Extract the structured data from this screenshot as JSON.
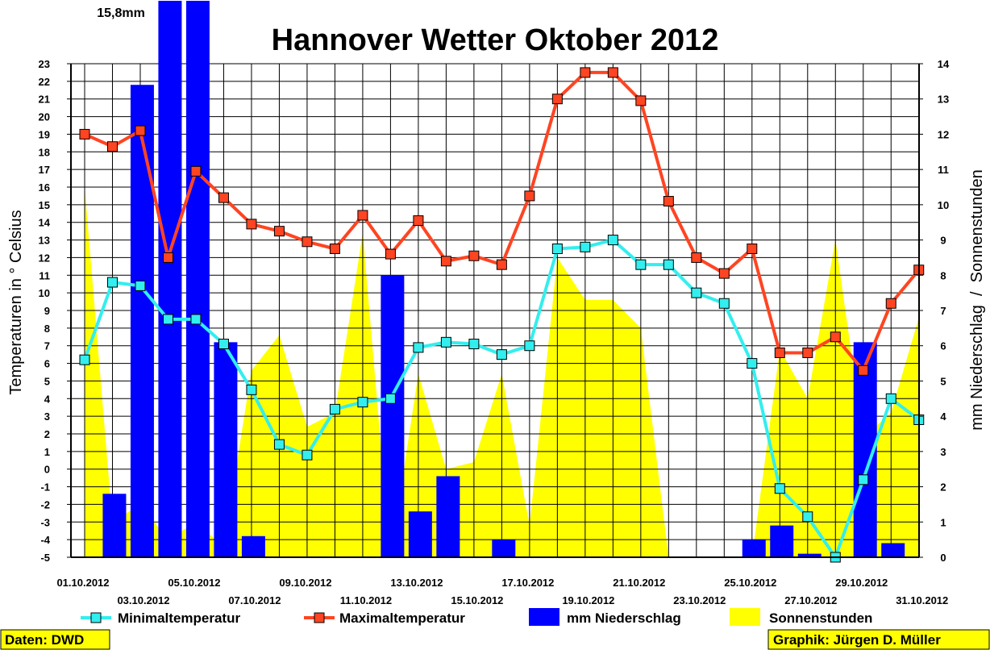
{
  "chart_data": {
    "type": "line",
    "title": "Hannover Wetter Oktober 2012",
    "ylabel_left": "Temperaturen in ° Celsius",
    "ylabel_right": "mm Niederschlag  /  Sonnenstunden",
    "ylim_left": [
      -5,
      23
    ],
    "ylim_right": [
      0,
      14
    ],
    "left_ticks": [
      -5,
      -4,
      -3,
      -2,
      -1,
      0,
      1,
      2,
      3,
      4,
      5,
      6,
      7,
      8,
      9,
      10,
      11,
      12,
      13,
      14,
      15,
      16,
      17,
      18,
      19,
      20,
      21,
      22,
      23
    ],
    "right_ticks": [
      0,
      1,
      2,
      3,
      4,
      5,
      6,
      7,
      8,
      9,
      10,
      11,
      12,
      13,
      14
    ],
    "grid": true,
    "legend_position": "bottom",
    "x": [
      "01.10.2012",
      "02.10.2012",
      "03.10.2012",
      "04.10.2012",
      "05.10.2012",
      "06.10.2012",
      "07.10.2012",
      "08.10.2012",
      "09.10.2012",
      "10.10.2012",
      "11.10.2012",
      "12.10.2012",
      "13.10.2012",
      "14.10.2012",
      "15.10.2012",
      "16.10.2012",
      "17.10.2012",
      "18.10.2012",
      "19.10.2012",
      "20.10.2012",
      "21.10.2012",
      "22.10.2012",
      "23.10.2012",
      "24.10.2012",
      "25.10.2012",
      "26.10.2012",
      "27.10.2012",
      "28.10.2012",
      "29.10.2012",
      "30.10.2012",
      "31.10.2012"
    ],
    "x_labels_row1": [
      "01.10.2012",
      "05.10.2012",
      "09.10.2012",
      "13.10.2012",
      "17.10.2012",
      "21.10.2012",
      "25.10.2012",
      "29.10.2012"
    ],
    "x_labels_row2": [
      "03.10.2012",
      "07.10.2012",
      "11.10.2012",
      "15.10.2012",
      "19.10.2012",
      "23.10.2012",
      "27.10.2012",
      "31.10.2012"
    ],
    "series": [
      {
        "name": "Minimaltemperatur",
        "axis": "left",
        "color": "#33eeee",
        "values": [
          6.2,
          10.6,
          10.4,
          8.5,
          8.5,
          7.1,
          4.5,
          1.4,
          0.8,
          3.4,
          3.8,
          4.0,
          6.9,
          7.2,
          7.1,
          6.5,
          7.0,
          12.5,
          12.6,
          13.0,
          11.6,
          11.6,
          10.0,
          9.4,
          6.0,
          -1.1,
          -2.7,
          -5.0,
          -0.6,
          4.0,
          2.8
        ]
      },
      {
        "name": "Maximaltemperatur",
        "axis": "left",
        "color": "#ff4422",
        "values": [
          19.0,
          18.3,
          19.2,
          12.0,
          16.9,
          15.4,
          13.9,
          13.5,
          12.9,
          12.5,
          14.4,
          12.2,
          14.1,
          11.8,
          12.1,
          11.6,
          15.5,
          21.0,
          22.5,
          22.5,
          20.9,
          15.2,
          12.0,
          11.1,
          12.5,
          6.6,
          6.6,
          7.5,
          5.6,
          9.4,
          11.3
        ]
      },
      {
        "name": "mm Niederschlag",
        "axis": "right",
        "color": "#0000ff",
        "values": [
          0,
          1.8,
          13.4,
          15.8,
          15.8,
          6.1,
          0.6,
          0,
          0,
          0,
          0,
          8.0,
          1.3,
          2.3,
          0,
          0.5,
          0,
          0,
          0,
          0,
          0,
          0,
          0,
          0,
          0.5,
          0.9,
          0.1,
          0,
          6.1,
          0.4,
          0
        ]
      },
      {
        "name": "Sonnenstunden",
        "axis": "right",
        "color": "#ffff00",
        "values": [
          10.5,
          1.0,
          1.5,
          0.5,
          1.0,
          0.3,
          5.3,
          6.3,
          3.7,
          4.1,
          9.2,
          0,
          5.2,
          2.5,
          2.7,
          5.2,
          0.9,
          8.5,
          7.3,
          7.3,
          6.5,
          0,
          null,
          0,
          0,
          5.9,
          4.5,
          9.0,
          3.4,
          4.1,
          6.8
        ]
      }
    ],
    "precip_overflow_note": "15,8mm",
    "credits": {
      "left": "Daten: DWD",
      "right": "Graphik: Jürgen D. Müller"
    }
  }
}
